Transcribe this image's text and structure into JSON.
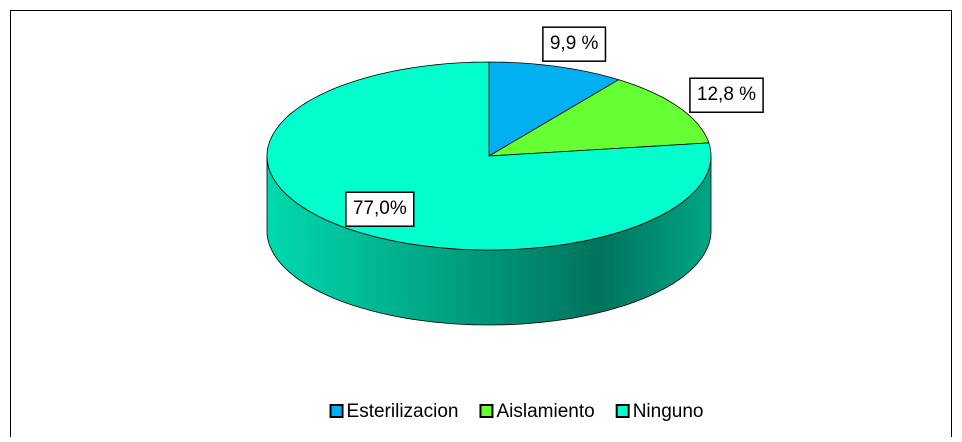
{
  "chart_data": {
    "type": "pie3d",
    "categories": [
      "Esterilizacion",
      "Aislamiento",
      "Ninguno"
    ],
    "values": [
      9.9,
      12.8,
      77.0
    ],
    "value_labels": [
      "9,9 %",
      "12,8 %",
      "77,0%"
    ],
    "colors": [
      "#00b0f0",
      "#66ff33",
      "#00ffcc"
    ],
    "legend": "bottom"
  }
}
